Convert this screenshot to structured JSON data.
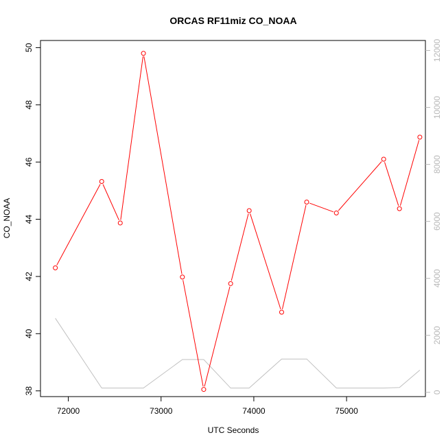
{
  "chart_data": {
    "type": "line",
    "title": "ORCAS RF11miz CO_NOAA",
    "xlabel": "UTC Seconds",
    "ylabel": "CO_NOAA",
    "xlim": [
      71700,
      75850
    ],
    "ylim": [
      37.8,
      50.25
    ],
    "y2lim": [
      -150,
      12350
    ],
    "x_ticks": [
      72000,
      73000,
      74000,
      75000
    ],
    "y_ticks": [
      38,
      40,
      42,
      44,
      46,
      48,
      50
    ],
    "y2_ticks": [
      0,
      2000,
      4000,
      6000,
      8000,
      10000,
      12000
    ],
    "grid": false,
    "legend": "none",
    "series": [
      {
        "axis": "left",
        "color": "#ff0000",
        "markers": true,
        "x": [
          71860,
          72360,
          72560,
          72810,
          73230,
          73460,
          73750,
          73950,
          74300,
          74570,
          74890,
          75400,
          75570,
          75790
        ],
        "y": [
          42.3,
          45.32,
          43.87,
          49.8,
          41.98,
          38.05,
          41.75,
          44.3,
          40.75,
          44.6,
          44.22,
          46.1,
          44.37,
          46.87
        ]
      },
      {
        "axis": "right",
        "color": "#c0c0c0",
        "markers": false,
        "x": [
          71860,
          72360,
          72560,
          72810,
          73230,
          73460,
          73750,
          73950,
          74300,
          74570,
          74890,
          75400,
          75570,
          75790
        ],
        "y": [
          2600,
          150,
          150,
          150,
          1150,
          1150,
          150,
          150,
          1170,
          1170,
          150,
          150,
          170,
          780
        ]
      }
    ]
  }
}
